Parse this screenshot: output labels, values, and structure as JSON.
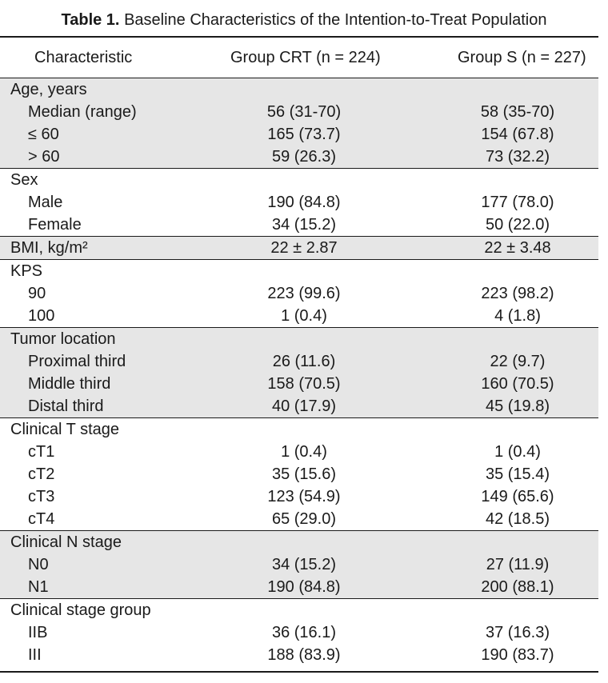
{
  "caption": {
    "label": "Table 1.",
    "title": "Baseline Characteristics of the Intention-to-Treat Population"
  },
  "header": {
    "characteristic": "Characteristic",
    "group_crt": "Group CRT (n = 224)",
    "group_s": "Group S (n = 227)"
  },
  "groups": [
    {
      "shaded": true,
      "rows": [
        {
          "label": "Age, years",
          "crt": "",
          "s": "",
          "sub": false
        },
        {
          "label": "Median (range)",
          "crt": "56 (31-70)",
          "s": "58 (35-70)",
          "sub": true
        },
        {
          "label": "≤ 60",
          "crt": "165 (73.7)",
          "s": "154 (67.8)",
          "sub": true
        },
        {
          "label": "> 60",
          "crt": "59 (26.3)",
          "s": "73 (32.2)",
          "sub": true
        }
      ]
    },
    {
      "shaded": false,
      "rows": [
        {
          "label": "Sex",
          "crt": "",
          "s": "",
          "sub": false
        },
        {
          "label": "Male",
          "crt": "190 (84.8)",
          "s": "177 (78.0)",
          "sub": true
        },
        {
          "label": "Female",
          "crt": "34 (15.2)",
          "s": "50 (22.0)",
          "sub": true
        }
      ]
    },
    {
      "shaded": true,
      "rows": [
        {
          "label": "BMI, kg/m²",
          "crt": "22 ± 2.87",
          "s": "22 ± 3.48",
          "sub": false
        }
      ]
    },
    {
      "shaded": false,
      "rows": [
        {
          "label": "KPS",
          "crt": "",
          "s": "",
          "sub": false
        },
        {
          "label": "90",
          "crt": "223 (99.6)",
          "s": "223 (98.2)",
          "sub": true
        },
        {
          "label": "100",
          "crt": "1 (0.4)",
          "s": "4 (1.8)",
          "sub": true
        }
      ]
    },
    {
      "shaded": true,
      "rows": [
        {
          "label": "Tumor location",
          "crt": "",
          "s": "",
          "sub": false
        },
        {
          "label": "Proximal third",
          "crt": "26 (11.6)",
          "s": "22 (9.7)",
          "sub": true
        },
        {
          "label": "Middle third",
          "crt": "158 (70.5)",
          "s": "160 (70.5)",
          "sub": true
        },
        {
          "label": "Distal third",
          "crt": "40 (17.9)",
          "s": "45 (19.8)",
          "sub": true
        }
      ]
    },
    {
      "shaded": false,
      "rows": [
        {
          "label": "Clinical T stage",
          "crt": "",
          "s": "",
          "sub": false
        },
        {
          "label": "cT1",
          "crt": "1 (0.4)",
          "s": "1 (0.4)",
          "sub": true
        },
        {
          "label": "cT2",
          "crt": "35 (15.6)",
          "s": "35 (15.4)",
          "sub": true
        },
        {
          "label": "cT3",
          "crt": "123 (54.9)",
          "s": "149 (65.6)",
          "sub": true
        },
        {
          "label": "cT4",
          "crt": "65 (29.0)",
          "s": "42 (18.5)",
          "sub": true
        }
      ]
    },
    {
      "shaded": true,
      "rows": [
        {
          "label": "Clinical N stage",
          "crt": "",
          "s": "",
          "sub": false
        },
        {
          "label": "N0",
          "crt": "34 (15.2)",
          "s": "27 (11.9)",
          "sub": true
        },
        {
          "label": "N1",
          "crt": "190 (84.8)",
          "s": "200 (88.1)",
          "sub": true
        }
      ]
    },
    {
      "shaded": false,
      "rows": [
        {
          "label": "Clinical stage group",
          "crt": "",
          "s": "",
          "sub": false
        },
        {
          "label": "IIB",
          "crt": "36 (16.1)",
          "s": "37 (16.3)",
          "sub": true
        },
        {
          "label": "III",
          "crt": "188 (83.9)",
          "s": "190 (83.7)",
          "sub": true
        }
      ]
    }
  ]
}
